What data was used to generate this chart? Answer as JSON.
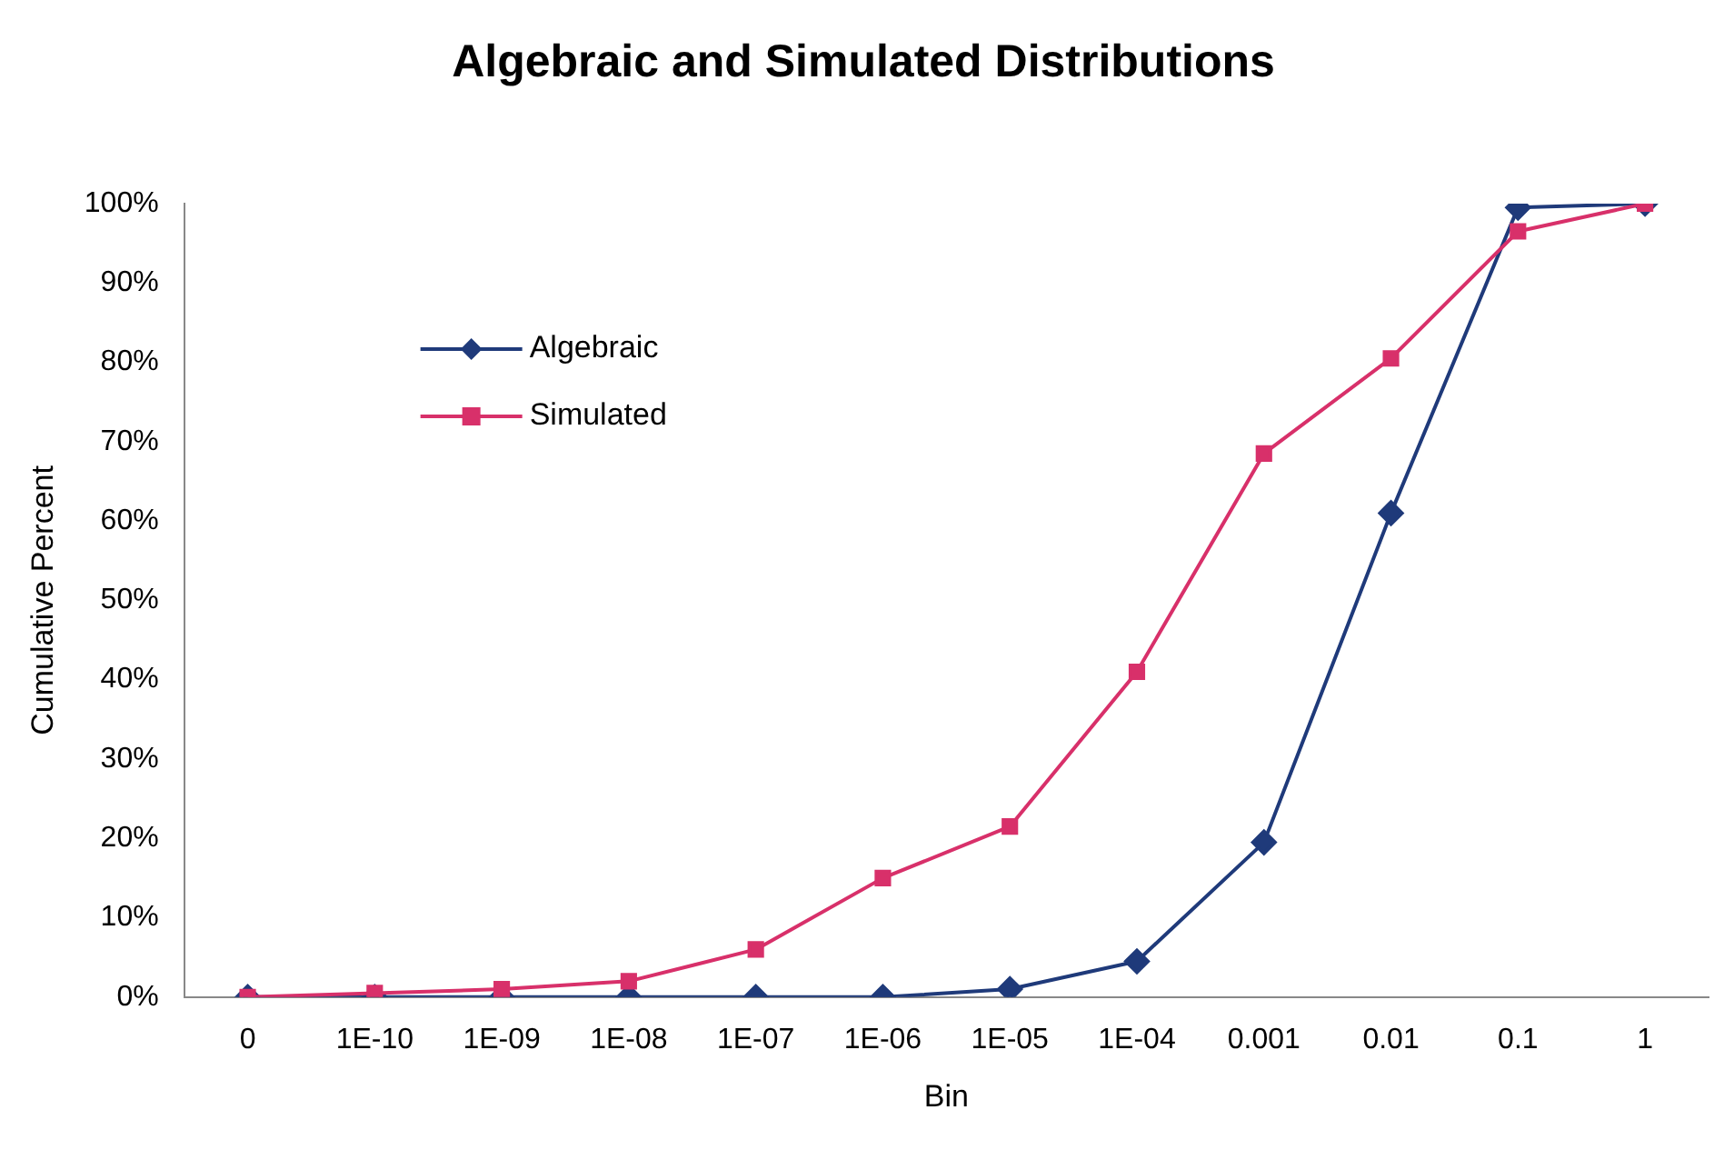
{
  "chart_data": {
    "type": "line",
    "title": "Algebraic and Simulated Distributions",
    "xlabel": "Bin",
    "ylabel": "Cumulative Percent",
    "categories": [
      "0",
      "1E-10",
      "1E-09",
      "1E-08",
      "1E-07",
      "1E-06",
      "1E-05",
      "1E-04",
      "0.001",
      "0.01",
      "0.1",
      "1"
    ],
    "ylim": [
      0,
      100
    ],
    "yticks": [
      {
        "value": 0,
        "label": "0%"
      },
      {
        "value": 10,
        "label": "10%"
      },
      {
        "value": 20,
        "label": "20%"
      },
      {
        "value": 30,
        "label": "30%"
      },
      {
        "value": 40,
        "label": "40%"
      },
      {
        "value": 50,
        "label": "50%"
      },
      {
        "value": 60,
        "label": "60%"
      },
      {
        "value": 70,
        "label": "70%"
      },
      {
        "value": 80,
        "label": "80%"
      },
      {
        "value": 90,
        "label": "90%"
      },
      {
        "value": 100,
        "label": "100%"
      }
    ],
    "grid": false,
    "legend": "top left",
    "line_style": "solid",
    "series": [
      {
        "name": "Algebraic",
        "color": "#1f3a7a",
        "marker": "diamond",
        "values": [
          0,
          0,
          0,
          0,
          0,
          0,
          1,
          4.5,
          19.5,
          61,
          99.5,
          100
        ]
      },
      {
        "name": "Simulated",
        "color": "#d8306a",
        "marker": "square",
        "values": [
          0,
          0.5,
          1,
          2,
          6,
          15,
          21.5,
          41,
          68.5,
          80.5,
          96.5,
          100
        ]
      }
    ]
  }
}
